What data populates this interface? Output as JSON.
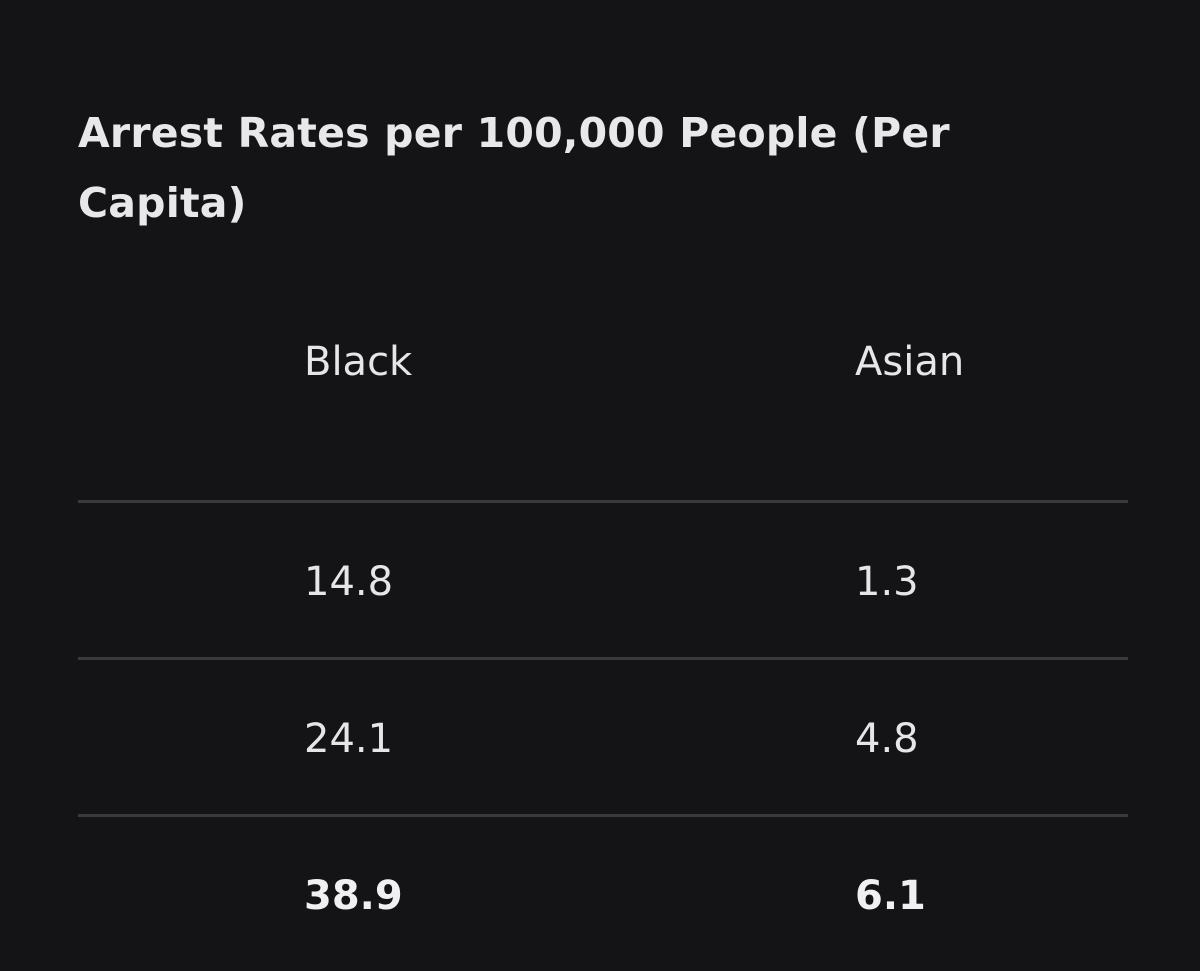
{
  "title": "Arrest Rates per 100,000 People (Per Capita)",
  "table": {
    "columns": [
      "Black",
      "Asian"
    ],
    "rows": [
      [
        "14.8",
        "1.3"
      ],
      [
        "24.1",
        "4.8"
      ],
      [
        "38.9",
        "6.1"
      ]
    ]
  },
  "colors": {
    "background": "#141416",
    "text": "#e6e6e8",
    "divider": "#3a3a3e"
  }
}
